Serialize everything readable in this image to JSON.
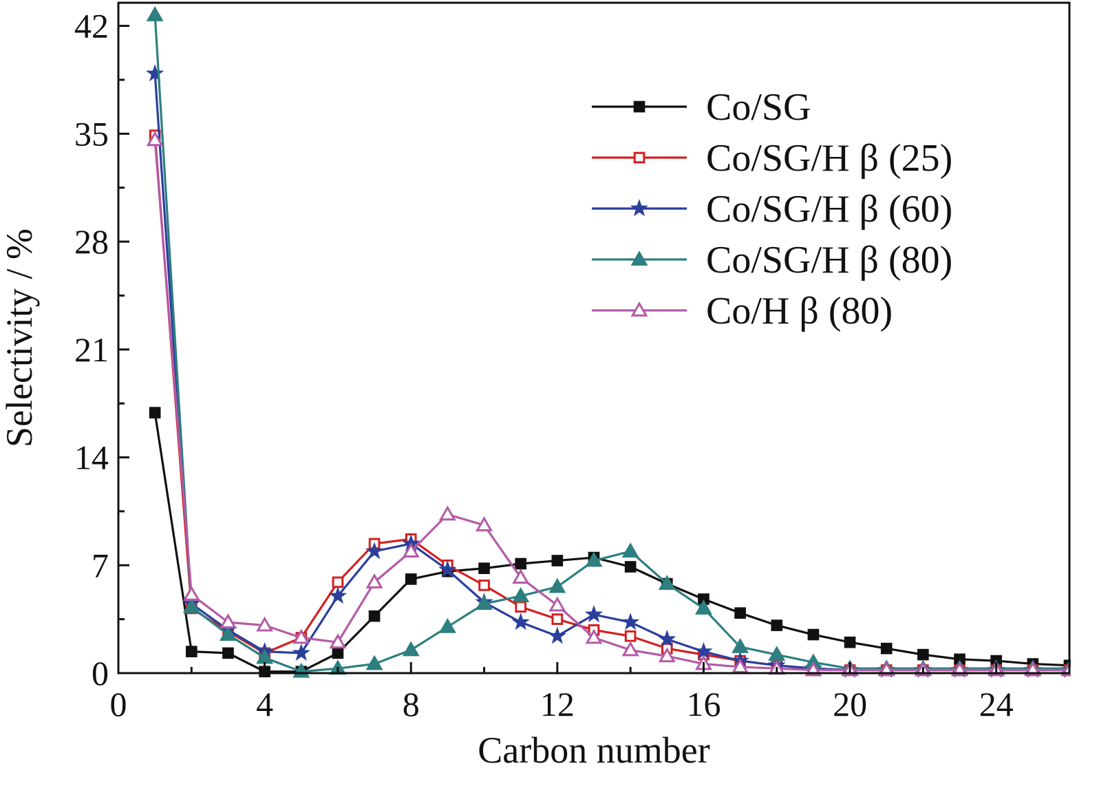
{
  "chart_data": {
    "type": "line",
    "xlabel": "Carbon number",
    "ylabel": "Selectivity / %",
    "xlim": [
      0,
      26
    ],
    "ylim": [
      0,
      43.5
    ],
    "xticks": [
      0,
      4,
      8,
      12,
      16,
      20,
      24
    ],
    "yticks": [
      0,
      7,
      14,
      21,
      28,
      35,
      42
    ],
    "x_tick_labels": [
      "0",
      "4",
      "8",
      "12",
      "16",
      "20",
      "24"
    ],
    "y_tick_labels": [
      "0",
      "7",
      "14",
      "21",
      "28",
      "35",
      "42"
    ],
    "grid": false,
    "legend_position": "top-right",
    "x": [
      1,
      2,
      3,
      4,
      5,
      6,
      7,
      8,
      9,
      10,
      11,
      12,
      13,
      14,
      15,
      16,
      17,
      18,
      19,
      20,
      21,
      22,
      23,
      24,
      25,
      26
    ],
    "series": [
      {
        "name": "Co/SG",
        "color": "#111111",
        "marker": "square-filled",
        "values": [
          16.9,
          1.4,
          1.3,
          0.1,
          0.1,
          1.3,
          3.7,
          6.1,
          6.6,
          6.8,
          7.1,
          7.3,
          7.5,
          6.9,
          5.8,
          4.8,
          3.9,
          3.1,
          2.5,
          2.0,
          1.6,
          1.2,
          0.9,
          0.8,
          0.6,
          0.5
        ]
      },
      {
        "name": "Co/SG/H β (25)",
        "color": "#d42020",
        "marker": "square-open",
        "values": [
          34.9,
          4.2,
          2.7,
          1.3,
          2.3,
          5.9,
          8.4,
          8.7,
          7.0,
          5.7,
          4.3,
          3.5,
          2.8,
          2.4,
          1.6,
          1.2,
          0.8,
          0.5,
          0.3,
          0.2,
          0.2,
          0.2,
          0.2,
          0.2,
          0.2,
          0.2
        ]
      },
      {
        "name": "Co/SG/H β (60)",
        "color": "#2b3f9c",
        "marker": "star-filled",
        "values": [
          38.9,
          4.5,
          2.8,
          1.4,
          1.3,
          5.0,
          7.9,
          8.4,
          6.7,
          4.6,
          3.3,
          2.4,
          3.8,
          3.3,
          2.2,
          1.4,
          0.8,
          0.5,
          0.3,
          0.2,
          0.2,
          0.2,
          0.2,
          0.2,
          0.2,
          0.2
        ]
      },
      {
        "name": "Co/SG/H β (80)",
        "color": "#2d7f80",
        "marker": "triangle-filled",
        "values": [
          42.7,
          4.3,
          2.5,
          1.0,
          0.1,
          0.3,
          0.6,
          1.5,
          3.0,
          4.5,
          5.0,
          5.6,
          7.3,
          7.9,
          5.8,
          4.2,
          1.7,
          1.2,
          0.7,
          0.3,
          0.3,
          0.3,
          0.3,
          0.3,
          0.3,
          0.3
        ]
      },
      {
        "name": "Co/H β (80)",
        "color": "#b45aa6",
        "marker": "triangle-open",
        "values": [
          34.6,
          5.1,
          3.3,
          3.1,
          2.3,
          2.0,
          5.9,
          7.9,
          10.3,
          9.6,
          6.2,
          4.4,
          2.3,
          1.5,
          1.1,
          0.6,
          0.4,
          0.3,
          0.2,
          0.2,
          0.2,
          0.2,
          0.2,
          0.2,
          0.2,
          0.2
        ]
      }
    ]
  }
}
